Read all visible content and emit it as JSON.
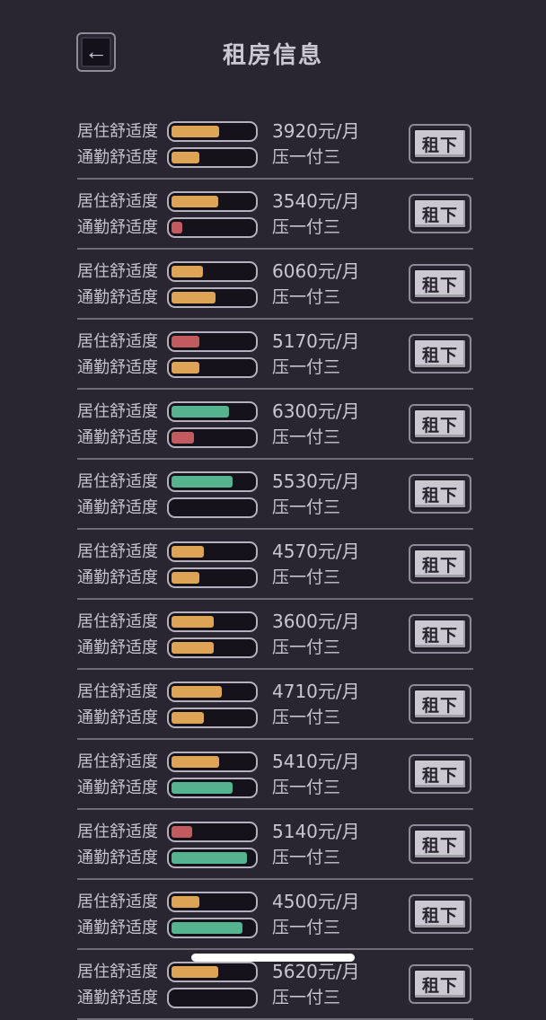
{
  "app": {
    "title": "租房信息",
    "back_icon": "←",
    "colors": {
      "background": "#2a2631",
      "orange": "#dda455",
      "red": "#c25b60",
      "green": "#55b38f",
      "bar_track": "#15121c",
      "bar_border": "#b4b0bd",
      "text": "#c6c3ce",
      "button_face": "#cbc8d2"
    }
  },
  "labels": {
    "living": "居住舒适度",
    "commute": "通勤舒适度",
    "rent_button": "租下"
  },
  "listings": [
    {
      "price": "3920元/月",
      "terms": "压一付三",
      "living_pct": 58,
      "living_color": "orange",
      "commute_pct": 34,
      "commute_color": "orange"
    },
    {
      "price": "3540元/月",
      "terms": "压一付三",
      "living_pct": 57,
      "living_color": "orange",
      "commute_pct": 13,
      "commute_color": "red"
    },
    {
      "price": "6060元/月",
      "terms": "压一付三",
      "living_pct": 38,
      "living_color": "orange",
      "commute_pct": 54,
      "commute_color": "orange"
    },
    {
      "price": "5170元/月",
      "terms": "压一付三",
      "living_pct": 34,
      "living_color": "red",
      "commute_pct": 34,
      "commute_color": "orange"
    },
    {
      "price": "6300元/月",
      "terms": "压一付三",
      "living_pct": 70,
      "living_color": "green",
      "commute_pct": 27,
      "commute_color": "red"
    },
    {
      "price": "5530元/月",
      "terms": "压一付三",
      "living_pct": 75,
      "living_color": "green",
      "commute_pct": 0,
      "commute_color": null
    },
    {
      "price": "4570元/月",
      "terms": "压一付三",
      "living_pct": 40,
      "living_color": "orange",
      "commute_pct": 34,
      "commute_color": "orange"
    },
    {
      "price": "3600元/月",
      "terms": "压一付三",
      "living_pct": 52,
      "living_color": "orange",
      "commute_pct": 52,
      "commute_color": "orange"
    },
    {
      "price": "4710元/月",
      "terms": "压一付三",
      "living_pct": 62,
      "living_color": "orange",
      "commute_pct": 40,
      "commute_color": "orange"
    },
    {
      "price": "5410元/月",
      "terms": "压一付三",
      "living_pct": 58,
      "living_color": "orange",
      "commute_pct": 75,
      "commute_color": "green"
    },
    {
      "price": "5140元/月",
      "terms": "压一付三",
      "living_pct": 25,
      "living_color": "red",
      "commute_pct": 92,
      "commute_color": "green"
    },
    {
      "price": "4500元/月",
      "terms": "压一付三",
      "living_pct": 34,
      "living_color": "orange",
      "commute_pct": 87,
      "commute_color": "green"
    },
    {
      "price": "5620元/月",
      "terms": "压一付三",
      "living_pct": 57,
      "living_color": "orange",
      "commute_pct": null,
      "commute_color": null,
      "partial": true
    }
  ]
}
